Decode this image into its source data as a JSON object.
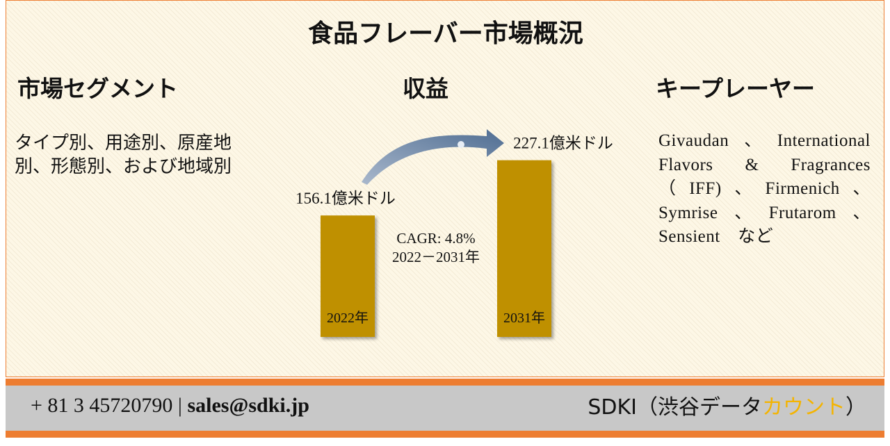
{
  "header": {
    "title": "食品フレーバー市場概況"
  },
  "segments": {
    "heading": "市場セグメント",
    "text": "タイプ別、用途別、原産地別、形態別、および地域別"
  },
  "chart_data": {
    "type": "bar",
    "title": "収益",
    "categories": [
      "2022年",
      "2031年"
    ],
    "values": [
      156.1,
      227.1
    ],
    "value_labels": [
      "156.1億米ドル",
      "227.1億米ドル"
    ],
    "color": "#bf9000",
    "annotations": [
      "CAGR: 4.8%",
      "2022－2031年"
    ]
  },
  "players": {
    "heading": "キープレーヤー",
    "text": "Givaudan、International Flavors & Fragrances　（IFF)、Firmenich、Symrise、Frutarom、Sensient　など"
  },
  "footer": {
    "phone": "+ 81 3 45720790",
    "separator": "|",
    "email": "sales@sdki.jp",
    "brand": "SDKI（渋谷データ",
    "brand_accent": "カウント",
    "brand_end": "）"
  }
}
